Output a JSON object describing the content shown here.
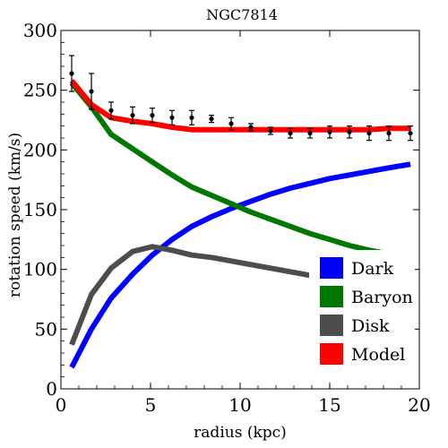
{
  "chart_data": {
    "type": "line",
    "title": "NGC7814",
    "xlabel": "radius (kpc)",
    "ylabel": "rotation speed (km/s)",
    "xlim": [
      0,
      20
    ],
    "ylim": [
      0,
      300
    ],
    "xticks": [
      0,
      5,
      10,
      15,
      20
    ],
    "yticks": [
      0,
      50,
      100,
      150,
      200,
      250,
      300
    ],
    "legend_position": "bottom-right",
    "series": [
      {
        "name": "Dark",
        "color": "#0000ff",
        "x": [
          0.6,
          1.7,
          2.8,
          4.0,
          5.1,
          6.2,
          7.3,
          8.4,
          9.5,
          10.6,
          11.7,
          12.8,
          13.9,
          15.0,
          16.1,
          17.2,
          18.3,
          19.5
        ],
        "y": [
          18,
          50,
          76,
          96,
          112,
          125,
          136,
          144,
          151,
          157,
          163,
          168,
          172,
          176,
          179,
          182,
          185,
          188
        ]
      },
      {
        "name": "Baryon",
        "color": "#007700",
        "x": [
          0.6,
          1.7,
          2.8,
          4.0,
          5.1,
          6.2,
          7.3,
          8.4,
          9.5,
          10.6,
          11.7,
          12.8,
          13.9,
          15.0,
          16.1,
          17.2,
          18.3,
          19.5
        ],
        "y": [
          256,
          236,
          213,
          201,
          190,
          179,
          169,
          162,
          155,
          148,
          142,
          136,
          130,
          125,
          120,
          116,
          113,
          110
        ]
      },
      {
        "name": "Disk",
        "color": "#4d4d4d",
        "x": [
          0.6,
          1.7,
          2.8,
          4.0,
          5.1,
          6.2,
          7.3,
          8.4,
          9.5,
          10.6,
          11.7,
          12.8,
          13.9,
          15.0,
          16.1,
          17.2,
          18.3,
          19.5
        ],
        "y": [
          37,
          79,
          101,
          115,
          119,
          116,
          112,
          110,
          107,
          104,
          101,
          98,
          95,
          92,
          90,
          87,
          85,
          83
        ]
      },
      {
        "name": "Model",
        "color": "#ff0000",
        "x": [
          0.6,
          1.7,
          2.8,
          4.0,
          5.1,
          6.2,
          7.3,
          8.4,
          9.5,
          10.6,
          11.7,
          12.8,
          13.9,
          15.0,
          16.1,
          17.2,
          18.3,
          19.5
        ],
        "y": [
          258,
          238,
          227,
          224,
          222,
          219,
          217,
          217,
          217,
          217,
          217,
          217,
          217,
          217,
          217,
          217,
          218,
          218
        ]
      }
    ],
    "observations": {
      "x": [
        0.6,
        1.7,
        2.8,
        4.0,
        5.1,
        6.2,
        7.3,
        8.4,
        9.5,
        10.6,
        11.7,
        12.8,
        13.9,
        15.0,
        16.1,
        17.2,
        18.3,
        19.5
      ],
      "y": [
        264,
        249,
        233,
        229,
        229,
        227,
        227,
        226,
        222,
        219,
        216,
        214,
        214,
        215,
        215,
        214,
        214,
        214
      ],
      "err": [
        15,
        15,
        7,
        7,
        6,
        6,
        6,
        3,
        5,
        3,
        3,
        4,
        4,
        5,
        5,
        6,
        6,
        6
      ]
    }
  }
}
